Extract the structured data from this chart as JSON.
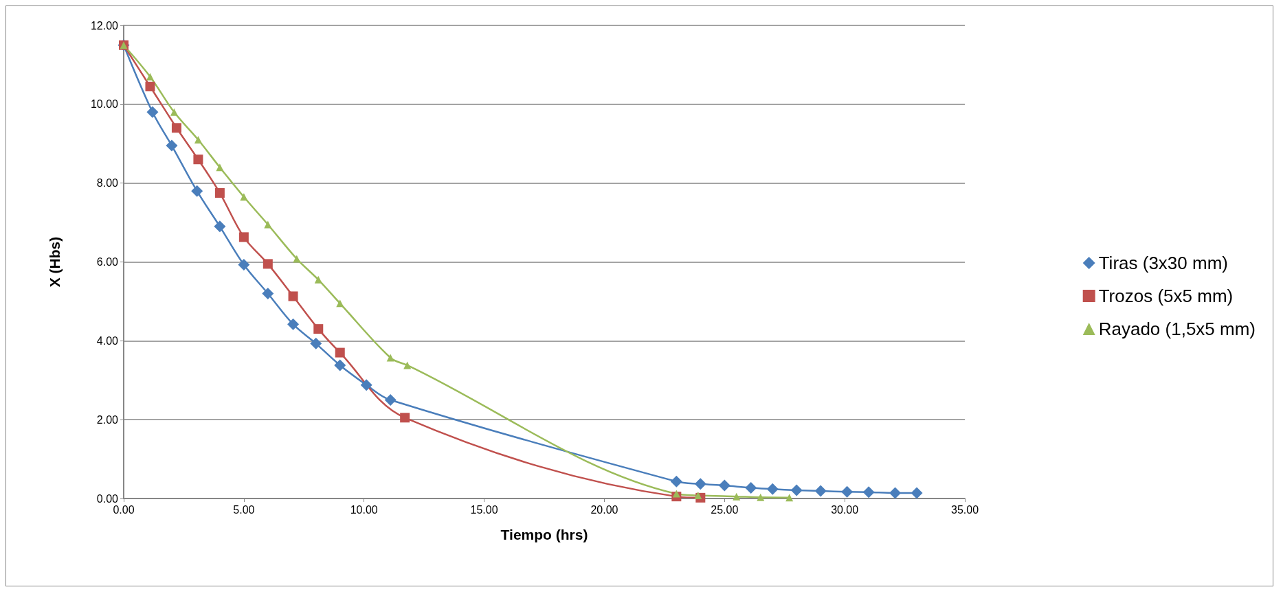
{
  "chart_data": {
    "type": "line",
    "xlabel": "Tiempo (hrs)",
    "ylabel": "X (Hbs)",
    "xlim": [
      0,
      35
    ],
    "ylim": [
      0,
      12
    ],
    "xticks": [
      {
        "value": 0,
        "label": "0.00"
      },
      {
        "value": 5,
        "label": "5.00"
      },
      {
        "value": 10,
        "label": "10.00"
      },
      {
        "value": 15,
        "label": "15.00"
      },
      {
        "value": 20,
        "label": "20.00"
      },
      {
        "value": 25,
        "label": "25.00"
      },
      {
        "value": 30,
        "label": "30.00"
      },
      {
        "value": 35,
        "label": "35.00"
      }
    ],
    "yticks": [
      {
        "value": 0,
        "label": "0.00"
      },
      {
        "value": 2,
        "label": "2.00"
      },
      {
        "value": 4,
        "label": "4.00"
      },
      {
        "value": 6,
        "label": "6.00"
      },
      {
        "value": 8,
        "label": "8.00"
      },
      {
        "value": 10,
        "label": "10.00"
      },
      {
        "value": 12,
        "label": "12.00"
      }
    ],
    "grid": "y",
    "legend": "right",
    "series": [
      {
        "name": "Tiras (3x30 mm)",
        "color": "#4a7ebb",
        "marker": "diamond",
        "x": [
          0,
          1.2,
          2.0,
          3.05,
          4.0,
          5.0,
          6.0,
          7.05,
          8.0,
          9.0,
          10.1,
          11.1,
          23,
          24,
          25,
          26.1,
          27,
          28,
          29,
          30.1,
          31,
          32.1,
          33
        ],
        "values": [
          11.5,
          9.8,
          8.95,
          7.8,
          6.9,
          5.93,
          5.2,
          4.42,
          3.93,
          3.38,
          2.88,
          2.5,
          0.43,
          0.37,
          0.33,
          0.27,
          0.24,
          0.21,
          0.19,
          0.17,
          0.16,
          0.14,
          0.14
        ]
      },
      {
        "name": "Trozos (5x5 mm)",
        "color": "#c0504d",
        "marker": "square",
        "x": [
          0,
          1.1,
          2.2,
          3.1,
          4.0,
          5.0,
          6.0,
          7.05,
          8.1,
          9.0,
          11.7,
          23,
          24
        ],
        "values": [
          11.5,
          10.45,
          9.4,
          8.6,
          7.75,
          6.63,
          5.95,
          5.13,
          4.3,
          3.7,
          2.05,
          0.05,
          0.02
        ]
      },
      {
        "name": "Rayado (1,5x5 mm)",
        "color": "#9bbb59",
        "marker": "triangle",
        "x": [
          0,
          1.1,
          2.1,
          3.1,
          4.0,
          5.0,
          6.0,
          7.2,
          8.1,
          9.0,
          11.1,
          11.8,
          23,
          23.9,
          25.5,
          26.5,
          27.7
        ],
        "values": [
          11.5,
          10.7,
          9.8,
          9.1,
          8.4,
          7.65,
          6.95,
          6.08,
          5.55,
          4.95,
          3.57,
          3.38,
          0.12,
          0.08,
          0.05,
          0.03,
          0.02
        ]
      }
    ]
  }
}
